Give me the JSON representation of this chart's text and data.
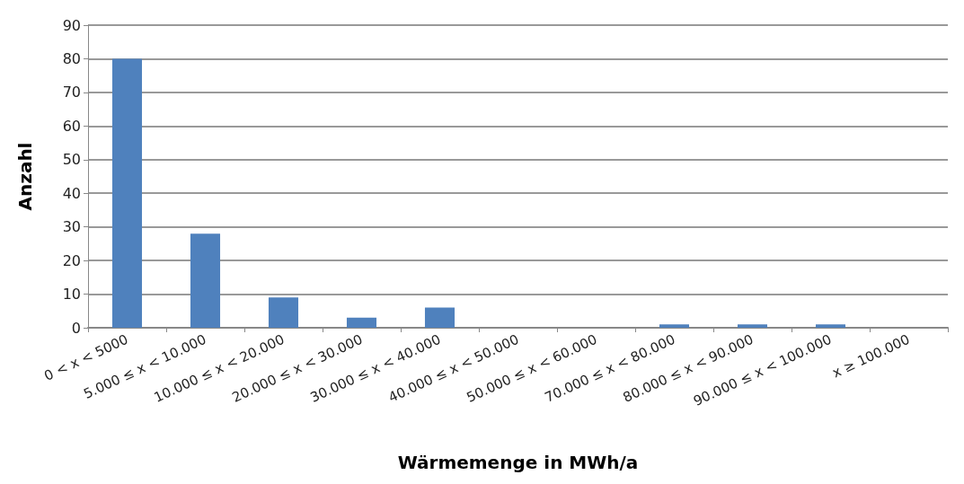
{
  "chart_data": {
    "type": "bar",
    "xlabel": "Wärmemenge in MWh/a",
    "ylabel": "Anzahl",
    "categories": [
      "0 < x < 5000",
      "5.000 ≤ x < 10.000",
      "10.000 ≤ x < 20.000",
      "20.000 ≤ x < 30.000",
      "30.000 ≤ x < 40.000",
      "40.000 ≤ x < 50.000",
      "50.000 ≤ x < 60.000",
      "70.000 ≤ x < 80.000",
      "80.000 ≤ x < 90.000",
      "90.000 ≤ x < 100.000",
      "x ≥ 100.000"
    ],
    "values": [
      80,
      28,
      9,
      3,
      6,
      0,
      0,
      1,
      1,
      1,
      0
    ],
    "color": "#4f81bd",
    "ylim": [
      0,
      90
    ],
    "yticks": [
      0,
      10,
      20,
      30,
      40,
      50,
      60,
      70,
      80,
      90
    ],
    "grid": "y"
  }
}
